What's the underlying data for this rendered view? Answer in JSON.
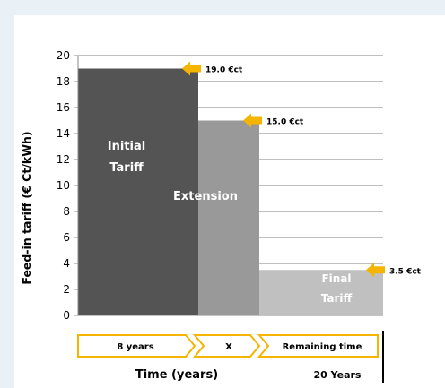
{
  "chart_data": {
    "type": "bar",
    "ylabel": "Feed-in tariff (€ Ct/kWh)",
    "xlabel": "Time (years)",
    "ylim": [
      0,
      20
    ],
    "yticks": [
      0,
      2,
      4,
      6,
      8,
      10,
      12,
      14,
      16,
      18,
      20
    ],
    "grid": true,
    "bars": [
      {
        "value": 19.0,
        "label": "Initial Tariff",
        "callout": "19.0 €ct",
        "color": "#545454"
      },
      {
        "value": 15.0,
        "label": "Extension",
        "callout": "15.0 €ct",
        "color": "#999999"
      },
      {
        "value": 3.5,
        "label": "Final Tariff",
        "callout": "3.5 €ct",
        "color": "#c0c0c0"
      }
    ],
    "periods": [
      "8 years",
      "X",
      "Remaining time"
    ],
    "end_label": "20 Years",
    "colors": {
      "arrow": "#f5b400",
      "axis": "#888888",
      "grid": "#000000"
    }
  }
}
